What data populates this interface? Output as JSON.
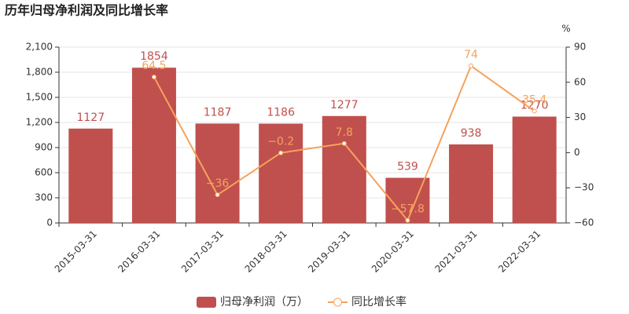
{
  "chart_data": {
    "type": "bar",
    "title": "历年归母净利润及同比增长率",
    "y2label": "%",
    "categories": [
      "2015-03-31",
      "2016-03-31",
      "2017-03-31",
      "2018-03-31",
      "2019-03-31",
      "2020-03-31",
      "2021-03-31",
      "2022-03-31"
    ],
    "series": [
      {
        "name": "归母净利润（万）",
        "type": "bar",
        "color": "#c0504d",
        "values": [
          1127,
          1854,
          1187,
          1186,
          1277,
          539,
          938,
          1270
        ]
      },
      {
        "name": "同比增长率",
        "type": "line",
        "axis": "y2",
        "color": "#f5a25d",
        "values": [
          null,
          64.5,
          -36,
          -0.2,
          7.8,
          -57.8,
          74,
          35.4
        ],
        "value_labels": [
          null,
          "64.5",
          "−36",
          "−0.2",
          "7.8",
          "−57.8",
          "74",
          "35.4"
        ]
      }
    ],
    "ylim": [
      0,
      2100
    ],
    "yticks": [
      0,
      300,
      600,
      900,
      {
        "value": 1200,
        "label": "1,200"
      },
      {
        "value": 1500,
        "label": "1,500"
      },
      {
        "value": 1800,
        "label": "1,800"
      },
      {
        "value": 2100,
        "label": "2,100"
      }
    ],
    "y2lim": [
      -60,
      90
    ],
    "y2ticks": [
      {
        "value": -60,
        "label": "−60"
      },
      {
        "value": -30,
        "label": "−30"
      },
      0,
      30,
      60,
      90
    ],
    "legend": "bottom"
  }
}
